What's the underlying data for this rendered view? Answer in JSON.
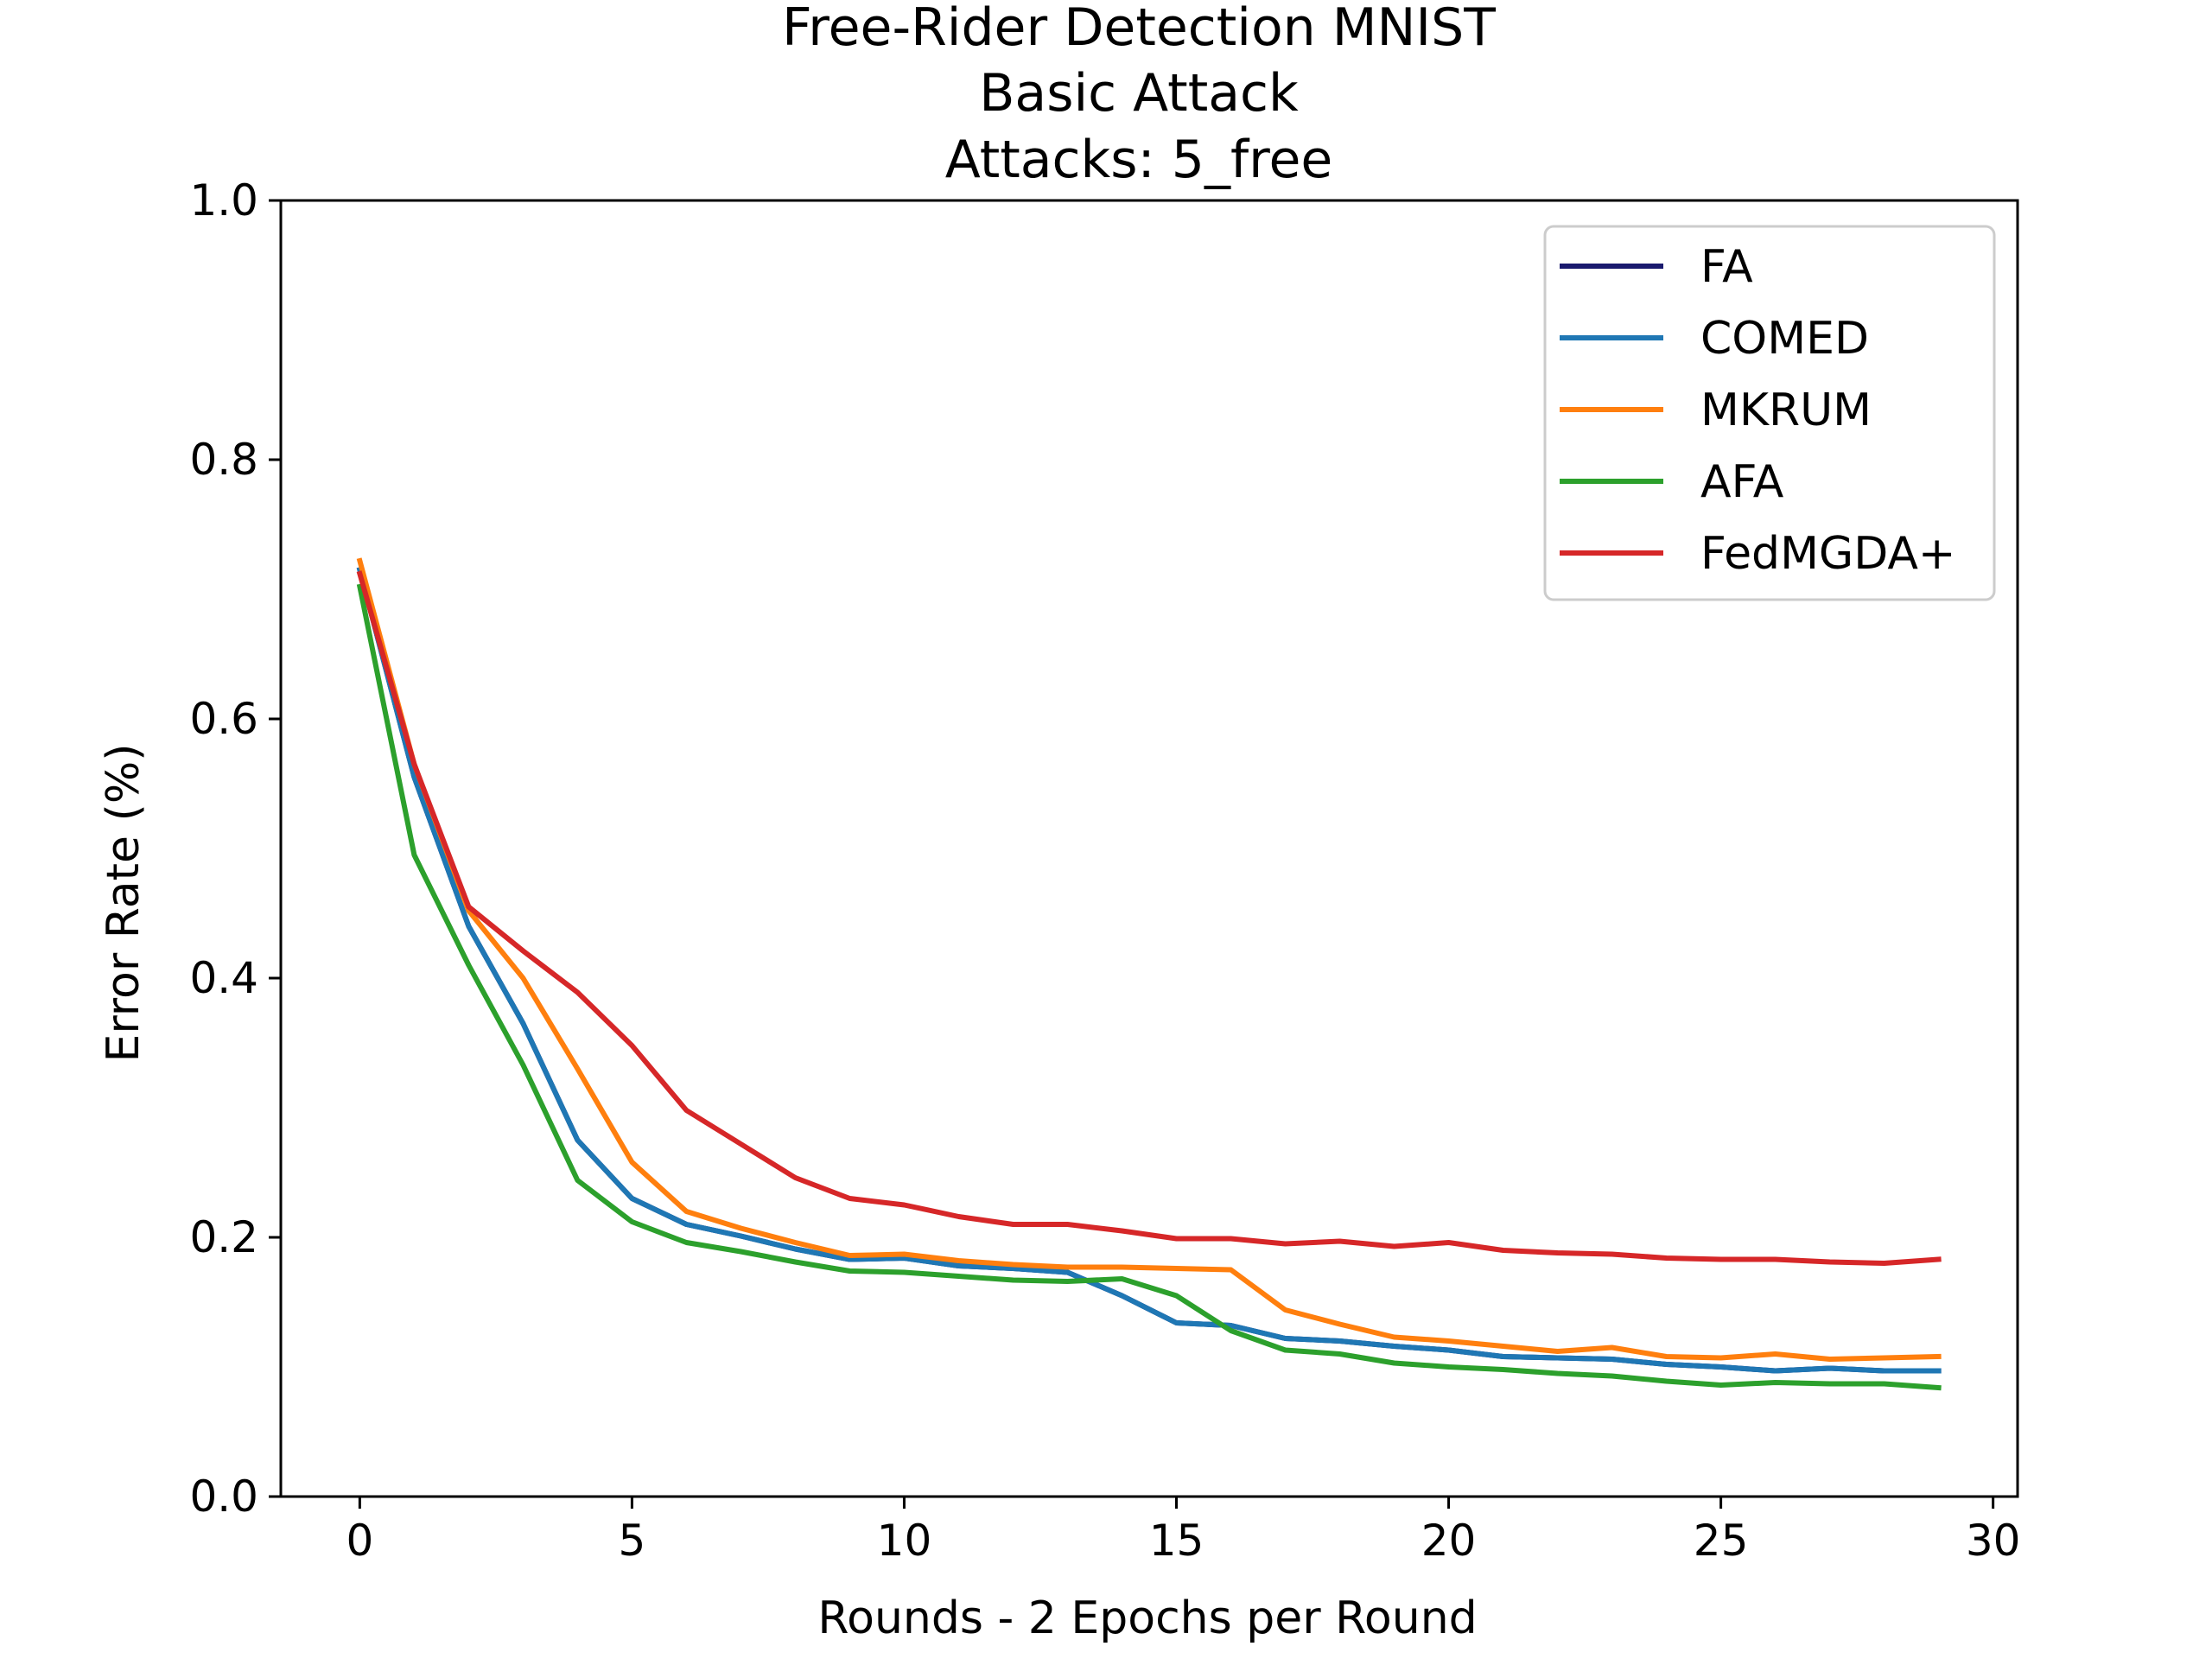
{
  "chart_data": {
    "type": "line",
    "title": [
      "Free-Rider Detection MNIST",
      "Basic Attack",
      "Attacks: 5_free"
    ],
    "xlabel": "Rounds - 2 Epochs per Round",
    "ylabel": "Error Rate (%)",
    "xlim": [
      -1.45,
      30.45
    ],
    "ylim": [
      0.0,
      1.0
    ],
    "xticks": [
      0,
      5,
      10,
      15,
      20,
      25,
      30
    ],
    "xtick_labels": [
      "0",
      "5",
      "10",
      "15",
      "20",
      "25",
      "30"
    ],
    "yticks": [
      0.0,
      0.2,
      0.4,
      0.6,
      0.8,
      1.0
    ],
    "ytick_labels": [
      "0.0",
      "0.2",
      "0.4",
      "0.6",
      "0.8",
      "1.0"
    ],
    "grid": false,
    "legend_position": "top-right",
    "x": [
      0,
      1,
      2,
      3,
      4,
      5,
      6,
      7,
      8,
      9,
      10,
      11,
      12,
      13,
      14,
      15,
      16,
      17,
      18,
      19,
      20,
      21,
      22,
      23,
      24,
      25,
      26,
      27,
      28,
      29
    ],
    "series": [
      {
        "name": "FA",
        "color": "#1a1a6e",
        "values": [
          0.715,
          0.555,
          0.44,
          0.365,
          0.275,
          0.23,
          0.21,
          0.201,
          0.191,
          0.183,
          0.184,
          0.178,
          0.176,
          0.173,
          0.155,
          0.134,
          0.132,
          0.122,
          0.12,
          0.116,
          0.113,
          0.108,
          0.107,
          0.106,
          0.102,
          0.1,
          0.097,
          0.099,
          0.097,
          0.097
        ]
      },
      {
        "name": "COMED",
        "color": "#1f77b4",
        "values": [
          0.715,
          0.555,
          0.44,
          0.365,
          0.275,
          0.23,
          0.21,
          0.201,
          0.191,
          0.183,
          0.184,
          0.178,
          0.176,
          0.173,
          0.155,
          0.134,
          0.132,
          0.122,
          0.12,
          0.116,
          0.113,
          0.108,
          0.107,
          0.106,
          0.102,
          0.1,
          0.097,
          0.099,
          0.097,
          0.097
        ]
      },
      {
        "name": "MKRUM",
        "color": "#ff7f0e",
        "values": [
          0.722,
          0.565,
          0.452,
          0.4,
          0.33,
          0.258,
          0.22,
          0.207,
          0.196,
          0.186,
          0.187,
          0.182,
          0.179,
          0.177,
          0.177,
          0.176,
          0.175,
          0.144,
          0.133,
          0.123,
          0.12,
          0.116,
          0.112,
          0.115,
          0.108,
          0.107,
          0.11,
          0.106,
          0.107,
          0.108
        ]
      },
      {
        "name": "AFA",
        "color": "#2ca02c",
        "values": [
          0.702,
          0.495,
          0.41,
          0.333,
          0.244,
          0.212,
          0.196,
          0.189,
          0.181,
          0.174,
          0.173,
          0.17,
          0.167,
          0.166,
          0.168,
          0.155,
          0.128,
          0.113,
          0.11,
          0.103,
          0.1,
          0.098,
          0.095,
          0.093,
          0.089,
          0.086,
          0.088,
          0.087,
          0.087,
          0.084
        ]
      },
      {
        "name": "FedMGDA+",
        "color": "#d62728",
        "values": [
          0.712,
          0.565,
          0.455,
          0.421,
          0.389,
          0.348,
          0.298,
          0.272,
          0.246,
          0.23,
          0.225,
          0.216,
          0.21,
          0.21,
          0.205,
          0.199,
          0.199,
          0.195,
          0.197,
          0.193,
          0.196,
          0.19,
          0.188,
          0.187,
          0.184,
          0.183,
          0.183,
          0.181,
          0.18,
          0.183
        ]
      }
    ]
  }
}
